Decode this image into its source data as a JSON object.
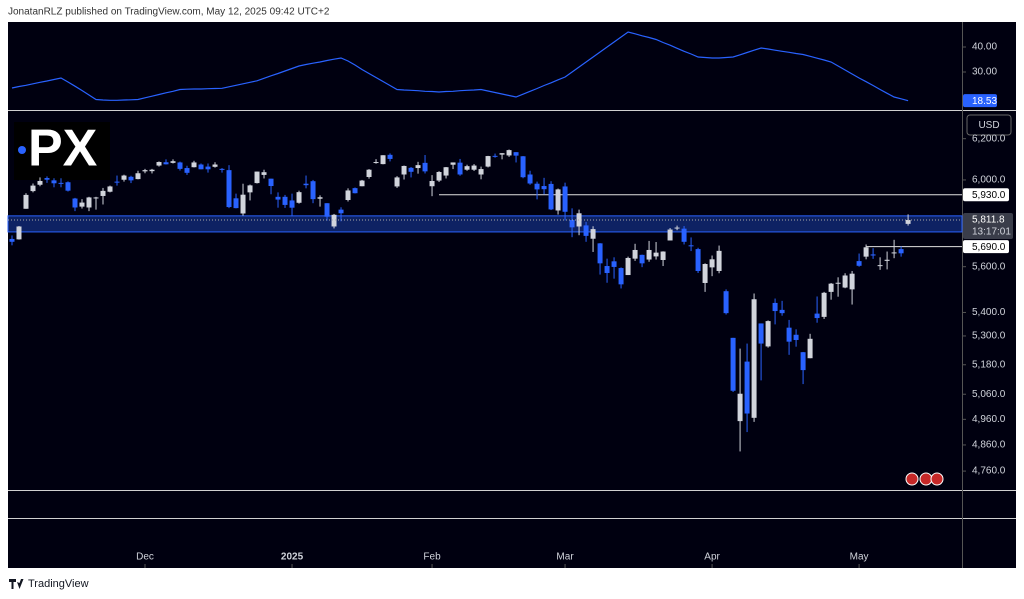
{
  "header": "JonatanRLZ published on TradingView.com, May 12, 2025 09:42 UTC+2",
  "brand": "TradingView",
  "logo": "PX",
  "chart_data": {
    "type": "candlestick",
    "currency": "USD",
    "log_scale": true,
    "up_color": "#d1d4dc",
    "down_color": "#2962ff",
    "ohlc": [
      [
        5725,
        5741,
        5696,
        5712
      ],
      [
        5723,
        5784,
        5722,
        5782
      ],
      [
        5864,
        5937,
        5864,
        5929
      ],
      [
        5947,
        5983,
        5941,
        5973
      ],
      [
        5977,
        6012,
        5970,
        5995
      ],
      [
        6009,
        6017,
        5986,
        6001
      ],
      [
        5998,
        6008,
        5965,
        5984
      ],
      [
        5986,
        6008,
        5965,
        5985
      ],
      [
        5989,
        5993,
        5945,
        5949
      ],
      [
        5912,
        5915,
        5853,
        5870
      ],
      [
        5874,
        5909,
        5865,
        5893
      ],
      [
        5870,
        5920,
        5853,
        5917
      ],
      [
        5917,
        5920,
        5860,
        5917
      ],
      [
        5924,
        5962,
        5884,
        5948
      ],
      [
        5944,
        5973,
        5941,
        5969
      ],
      [
        5992,
        6021,
        5973,
        5987
      ],
      [
        6001,
        6025,
        5992,
        6021
      ],
      [
        6015,
        6020,
        5985,
        5998
      ],
      [
        6004,
        6044,
        6003,
        6032
      ],
      [
        6041,
        6053,
        6032,
        6047
      ],
      [
        6042,
        6053,
        6031,
        6049
      ],
      [
        6069,
        6089,
        6064,
        6086
      ],
      [
        6085,
        6099,
        6074,
        6075
      ],
      [
        6082,
        6099,
        6079,
        6090
      ],
      [
        6084,
        6088,
        6045,
        6053
      ],
      [
        6057,
        6068,
        6024,
        6034
      ],
      [
        6061,
        6092,
        6060,
        6084
      ],
      [
        6074,
        6079,
        6051,
        6051
      ],
      [
        6064,
        6079,
        6035,
        6051
      ],
      [
        6063,
        6085,
        6059,
        6074
      ],
      [
        6053,
        6057,
        6035,
        6050
      ],
      [
        6047,
        6071,
        5867,
        5872
      ],
      [
        5913,
        5935,
        5866,
        5867
      ],
      [
        5842,
        5982,
        5832,
        5930
      ],
      [
        5941,
        5978,
        5903,
        5974
      ],
      [
        5985,
        6040,
        5983,
        6040
      ],
      [
        6024,
        6049,
        6007,
        6037
      ],
      [
        6006,
        6006,
        5932,
        5971
      ],
      [
        5920,
        5941,
        5869,
        5907
      ],
      [
        5920,
        5929,
        5868,
        5882
      ],
      [
        5903,
        5935,
        5829,
        5869
      ],
      [
        5892,
        5949,
        5888,
        5942
      ],
      [
        5982,
        6021,
        5960,
        5975
      ],
      [
        5994,
        6000,
        5890,
        5909
      ],
      [
        5911,
        5927,
        5874,
        5918
      ],
      [
        5890,
        5890,
        5809,
        5827
      ],
      [
        5782,
        5840,
        5773,
        5836
      ],
      [
        5860,
        5871,
        5806,
        5843
      ],
      [
        5905,
        5960,
        5898,
        5950
      ],
      [
        5961,
        5964,
        5936,
        5937
      ],
      [
        5970,
        6000,
        5970,
        5997
      ],
      [
        6014,
        6052,
        6006,
        6049
      ],
      [
        6082,
        6100,
        6078,
        6086
      ],
      [
        6076,
        6119,
        6075,
        6119
      ],
      [
        6121,
        6128,
        6089,
        6101
      ],
      [
        5969,
        6018,
        5962,
        6012
      ],
      [
        6026,
        6069,
        6002,
        6067
      ],
      [
        6058,
        6062,
        6012,
        6039
      ],
      [
        6057,
        6087,
        6030,
        6071
      ],
      [
        6082,
        6120,
        6031,
        6041
      ],
      [
        5970,
        6023,
        5923,
        5995
      ],
      [
        5997,
        6042,
        5990,
        6038
      ],
      [
        6021,
        6062,
        6007,
        6061
      ],
      [
        6073,
        6084,
        6052,
        6084
      ],
      [
        6083,
        6101,
        6020,
        6026
      ],
      [
        6049,
        6073,
        6044,
        6066
      ],
      [
        6049,
        6076,
        6043,
        6069
      ],
      [
        6026,
        6064,
        6003,
        6052
      ],
      [
        6064,
        6116,
        6060,
        6115
      ],
      [
        6116,
        6127,
        6107,
        6115
      ],
      [
        6122,
        6129,
        6099,
        6129
      ],
      [
        6118,
        6147,
        6111,
        6144
      ],
      [
        6134,
        6134,
        6084,
        6117
      ],
      [
        6114,
        6115,
        6008,
        6013
      ],
      [
        6026,
        6044,
        5977,
        5983
      ],
      [
        5982,
        5992,
        5908,
        5955
      ],
      [
        5971,
        6010,
        5932,
        5956
      ],
      [
        5981,
        5994,
        5858,
        5861
      ],
      [
        5856,
        5959,
        5837,
        5955
      ],
      [
        5969,
        5987,
        5810,
        5850
      ],
      [
        5812,
        5866,
        5733,
        5778
      ],
      [
        5782,
        5860,
        5742,
        5843
      ],
      [
        5787,
        5803,
        5712,
        5739
      ],
      [
        5726,
        5783,
        5666,
        5770
      ],
      [
        5705,
        5706,
        5565,
        5615
      ],
      [
        5603,
        5636,
        5529,
        5572
      ],
      [
        5624,
        5642,
        5547,
        5599
      ],
      [
        5594,
        5597,
        5504,
        5522
      ],
      [
        5563,
        5645,
        5563,
        5639
      ],
      [
        5636,
        5703,
        5626,
        5675
      ],
      [
        5653,
        5654,
        5598,
        5615
      ],
      [
        5632,
        5716,
        5622,
        5675
      ],
      [
        5646,
        5711,
        5632,
        5663
      ],
      [
        5630,
        5669,
        5603,
        5668
      ],
      [
        5718,
        5775,
        5718,
        5768
      ],
      [
        5775,
        5786,
        5765,
        5777
      ],
      [
        5772,
        5784,
        5700,
        5712
      ],
      [
        5696,
        5732,
        5670,
        5693
      ],
      [
        5679,
        5685,
        5572,
        5581
      ],
      [
        5528,
        5615,
        5489,
        5612
      ],
      [
        5597,
        5650,
        5558,
        5633
      ],
      [
        5581,
        5695,
        5571,
        5671
      ],
      [
        5492,
        5500,
        5391,
        5397
      ],
      [
        5292,
        5292,
        5069,
        5074
      ],
      [
        4953,
        5247,
        4835,
        5062
      ],
      [
        5193,
        5268,
        4910,
        4983
      ],
      [
        4966,
        5482,
        4950,
        5457
      ],
      [
        5353,
        5353,
        5116,
        5268
      ],
      [
        5256,
        5366,
        5251,
        5363
      ],
      [
        5441,
        5460,
        5349,
        5406
      ],
      [
        5411,
        5450,
        5386,
        5397
      ],
      [
        5335,
        5368,
        5221,
        5276
      ],
      [
        5305,
        5328,
        5255,
        5283
      ],
      [
        5232,
        5233,
        5101,
        5158
      ],
      [
        5207,
        5309,
        5207,
        5288
      ],
      [
        5395,
        5469,
        5356,
        5376
      ],
      [
        5381,
        5489,
        5372,
        5485
      ],
      [
        5489,
        5528,
        5455,
        5525
      ],
      [
        5529,
        5553,
        5468,
        5529
      ],
      [
        5508,
        5571,
        5505,
        5561
      ],
      [
        5500,
        5581,
        5434,
        5569
      ],
      [
        5625,
        5659,
        5600,
        5604
      ],
      [
        5645,
        5700,
        5633,
        5687
      ],
      [
        5655,
        5683,
        5635,
        5650
      ],
      [
        5606,
        5642,
        5586,
        5607
      ],
      [
        5626,
        5668,
        5588,
        5631
      ],
      [
        5663,
        5721,
        5638,
        5664
      ],
      [
        5679,
        5691,
        5645,
        5660
      ],
      [
        5794,
        5838,
        5786,
        5811.8
      ]
    ],
    "ylim": [
      4689,
      6333
    ],
    "yticks": [
      {
        "value": 6200,
        "label": "6,200.0"
      },
      {
        "value": 6000,
        "label": "6,000.0"
      },
      {
        "value": 5600,
        "label": "5,600.0"
      },
      {
        "value": 5400,
        "label": "5,400.0"
      },
      {
        "value": 5300,
        "label": "5,300.0"
      },
      {
        "value": 5180,
        "label": "5,180.0"
      },
      {
        "value": 5060,
        "label": "5,060.0"
      },
      {
        "value": 4960,
        "label": "4,960.0"
      },
      {
        "value": 4860,
        "label": "4,860.0"
      },
      {
        "value": 4760,
        "label": "4,760.0"
      }
    ],
    "xlim": [
      -0.57,
      135.7
    ],
    "xticks": [
      {
        "value": 19,
        "label": "Dec"
      },
      {
        "value": 40,
        "label": "2025"
      },
      {
        "value": 60,
        "label": "Feb"
      },
      {
        "value": 79,
        "label": "Mar"
      },
      {
        "value": 100,
        "label": "Apr"
      },
      {
        "value": 121,
        "label": "May"
      }
    ],
    "levels": [
      {
        "value": 5930,
        "label": "5,930.0",
        "start": 61
      },
      {
        "value": 5690,
        "label": "5,690.0",
        "start": 122
      }
    ],
    "zone": {
      "low": 5757,
      "high": 5831,
      "color": "#2962ff"
    },
    "last_price_label": "5,811.8",
    "countdown": "13:17:01",
    "indicator": {
      "type": "line",
      "color": "#2962ff",
      "ylim": [
        14.8,
        50
      ],
      "yticks": [
        {
          "value": 40,
          "label": "40.00"
        },
        {
          "value": 30,
          "label": "30.00"
        }
      ],
      "last_label": "18.53",
      "values": [
        23.6,
        24.2,
        24.7,
        25.3,
        25.9,
        26.4,
        27.0,
        27.6,
        26.0,
        24.3,
        22.6,
        20.8,
        19.0,
        18.8,
        18.7,
        18.7,
        18.8,
        18.9,
        19.0,
        19.7,
        20.3,
        21.0,
        21.7,
        22.3,
        23.0,
        23.1,
        23.2,
        23.2,
        23.3,
        23.4,
        23.5,
        24.1,
        24.7,
        25.3,
        25.9,
        26.5,
        27.5,
        28.5,
        29.4,
        30.4,
        31.4,
        32.4,
        33.0,
        33.5,
        34.0,
        34.6,
        35.1,
        35.6,
        34.4,
        32.8,
        31.0,
        29.4,
        27.8,
        26.2,
        24.6,
        23.0,
        22.8,
        22.7,
        22.5,
        22.3,
        22.2,
        22.0,
        22.2,
        22.3,
        22.5,
        22.7,
        22.8,
        23.0,
        22.4,
        21.8,
        21.2,
        20.6,
        20.0,
        21.1,
        22.3,
        23.4,
        24.6,
        25.7,
        26.9,
        28.0,
        30.0,
        32.0,
        34.0,
        36.0,
        38.0,
        40.0,
        42.0,
        44.0,
        46.0,
        45.3,
        44.5,
        43.8,
        43.0,
        41.8,
        40.7,
        39.5,
        38.3,
        37.2,
        36.0,
        35.8,
        35.6,
        35.6,
        35.8,
        36.0,
        36.9,
        37.8,
        38.7,
        39.6,
        39.2,
        38.7,
        38.3,
        37.9,
        37.4,
        37.0,
        36.3,
        35.5,
        34.8,
        34.0,
        32.4,
        30.8,
        29.2,
        27.6,
        26.1,
        24.6,
        23.0,
        21.5,
        20.0,
        19.3,
        18.53
      ]
    }
  }
}
